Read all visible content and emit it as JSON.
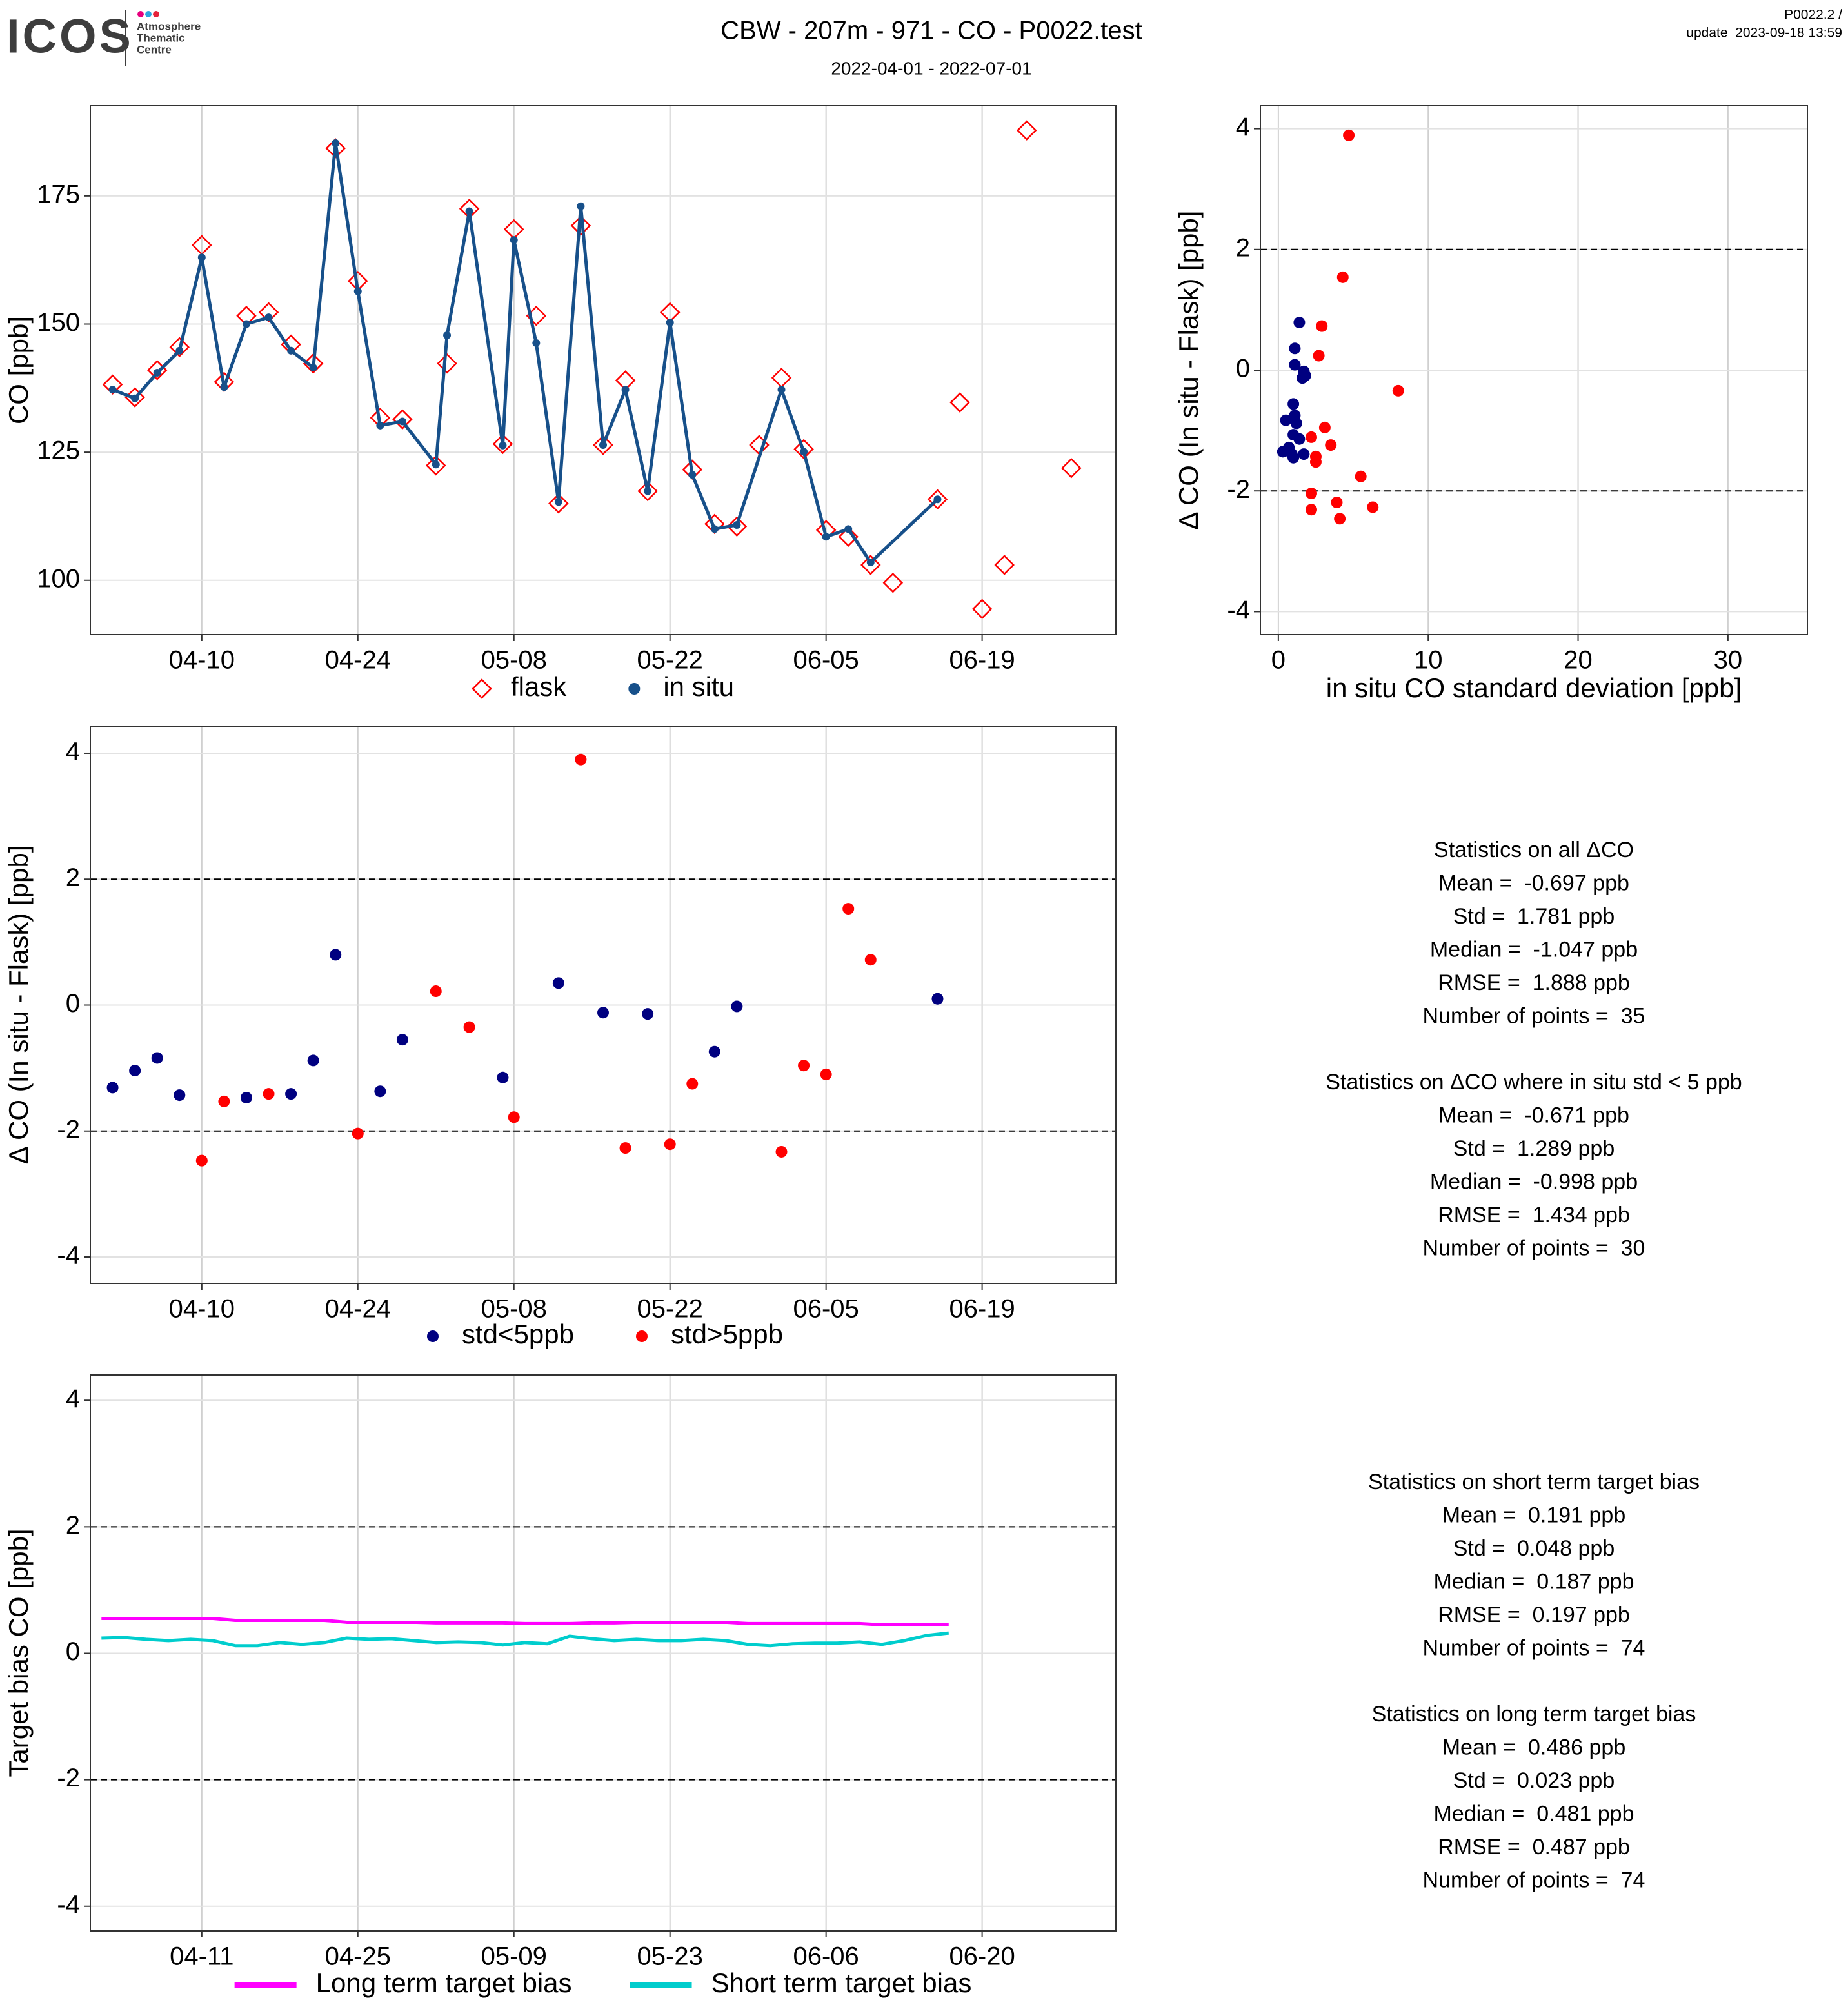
{
  "header": {
    "logo": "ICOS",
    "logo_sub": [
      "Atmosphere",
      "Thematic",
      "Centre"
    ],
    "title": "CBW - 207m - 971 - CO - P0022.test",
    "subtitle": "2022-04-01 - 2022-07-01",
    "version": "P0022.2 /",
    "update": "update  2023-09-18 13:59"
  },
  "chart_data": [
    {
      "type": "line",
      "ylabel": "CO [ppb]",
      "xlim": [
        "03-31",
        "07-01"
      ],
      "xticks": [
        "04-10",
        "04-24",
        "05-08",
        "05-22",
        "06-05",
        "06-19"
      ],
      "ylim": [
        89.4,
        192.6
      ],
      "yticks": [
        100,
        125,
        150,
        175
      ],
      "grid": true,
      "legend": "bottom",
      "series": [
        {
          "name": "flask",
          "color": "#ff0000",
          "marker": "diamond",
          "connect": false,
          "x": [
            "04-02",
            "04-04",
            "04-06",
            "04-08",
            "04-10",
            "04-12",
            "04-14",
            "04-16",
            "04-18",
            "04-20",
            "04-22",
            "04-24",
            "04-26",
            "04-28",
            "05-01",
            "05-02",
            "05-04",
            "05-07",
            "05-08",
            "05-10",
            "05-12",
            "05-14",
            "05-16",
            "05-18",
            "05-20",
            "05-22",
            "05-24",
            "05-26",
            "05-28",
            "05-30",
            "06-01",
            "06-03",
            "06-05",
            "06-07",
            "06-09",
            "06-11",
            "06-15",
            "06-17",
            "06-19",
            "06-21",
            "06-23",
            "06-27"
          ],
          "values": [
            138.2,
            135.7,
            141,
            145.5,
            165.4,
            138.7,
            151.6,
            152.3,
            146,
            142.3,
            184.3,
            158.4,
            131.7,
            131.4,
            122.4,
            142.3,
            172.5,
            126.6,
            168.5,
            151.6,
            115,
            169.2,
            126.4,
            139,
            117.4,
            152.3,
            121.6,
            111,
            110.5,
            126.4,
            139.5,
            125.6,
            109.8,
            108.5,
            103,
            99.5,
            115.8,
            134.7,
            94.4,
            103,
            187.8,
            121.9
          ]
        },
        {
          "name": "in situ",
          "color": "#17508a",
          "marker": "point",
          "connect": true,
          "x": [
            "04-02",
            "04-04",
            "04-06",
            "04-08",
            "04-10",
            "04-12",
            "04-14",
            "04-16",
            "04-18",
            "04-20",
            "04-22",
            "04-24",
            "04-26",
            "04-28",
            "05-01",
            "05-02",
            "05-04",
            "05-07",
            "05-08",
            "05-10",
            "05-12",
            "05-14",
            "05-16",
            "05-18",
            "05-20",
            "05-22",
            "05-24",
            "05-26",
            "05-28",
            "06-01",
            "06-03",
            "06-05",
            "06-07",
            "06-09",
            "06-15"
          ],
          "values": [
            137.2,
            135.5,
            140.5,
            144.8,
            163,
            137.7,
            150,
            151.3,
            144.8,
            141.5,
            185.3,
            156.4,
            130.2,
            131,
            122.6,
            147.8,
            172,
            126.3,
            166.4,
            146.3,
            115.3,
            173,
            126.4,
            137.2,
            117.4,
            150.3,
            120.6,
            110,
            110.8,
            137.2,
            125.1,
            108.5,
            110,
            103.5,
            115.8
          ]
        }
      ]
    },
    {
      "type": "scatter",
      "xlabel": "in situ CO standard deviation [ppb]",
      "ylabel": "Δ CO (In situ - Flask) [ppb]",
      "xlim": [
        -1.2,
        35.3
      ],
      "xticks": [
        0,
        10,
        20,
        30
      ],
      "ylim": [
        -4.38,
        4.38
      ],
      "yticks": [
        -4,
        -2,
        0,
        2,
        4
      ],
      "hlines": [
        -2,
        2
      ],
      "grid": true,
      "series": [
        {
          "color": "#000080",
          "marker": "point",
          "x": [
            1.4,
            1.1,
            1.1,
            1.7,
            1.6,
            1.8,
            1.0,
            1.1,
            0.5,
            1.2,
            1.0,
            1.4,
            0.3,
            0.7,
            0.9,
            1.7,
            1.0
          ],
          "values": [
            0.79,
            0.36,
            0.09,
            -0.02,
            -0.13,
            -0.09,
            -0.56,
            -0.75,
            -0.83,
            -0.88,
            -1.07,
            -1.14,
            -1.35,
            -1.28,
            -1.39,
            -1.39,
            -1.45
          ]
        },
        {
          "color": "#ff0000",
          "marker": "point",
          "x": [
            4.7,
            4.3,
            2.9,
            2.7,
            8,
            2.2,
            3.1,
            3.5,
            2.5,
            2.5,
            5.5,
            2.2,
            3.9,
            6.3,
            2.2,
            4.1
          ],
          "values": [
            3.89,
            1.54,
            0.73,
            0.24,
            -0.34,
            -1.11,
            -0.95,
            -1.24,
            -1.43,
            -1.52,
            -1.76,
            -2.04,
            -2.19,
            -2.27,
            -2.31,
            -2.46
          ]
        }
      ]
    },
    {
      "type": "scatter",
      "ylabel": "Δ CO (In situ - Flask) [ppb]",
      "xlim": [
        "03-31",
        "07-01"
      ],
      "xticks": [
        "04-10",
        "04-24",
        "05-08",
        "05-22",
        "06-05",
        "06-19"
      ],
      "ylim": [
        -4.42,
        4.43
      ],
      "yticks": [
        -4,
        -2,
        0,
        2,
        4
      ],
      "hlines": [
        -2,
        2
      ],
      "grid": true,
      "legend": "bottom",
      "series": [
        {
          "name": "std<5ppb",
          "color": "#000080",
          "marker": "point",
          "x": [
            "04-02",
            "04-04",
            "04-06",
            "04-08",
            "04-14",
            "04-18",
            "04-20",
            "04-22",
            "04-26",
            "04-28",
            "05-07",
            "05-12",
            "05-16",
            "05-20",
            "05-26",
            "05-28",
            "06-15"
          ],
          "values": [
            -1.31,
            -1.04,
            -0.84,
            -1.43,
            -1.47,
            -1.41,
            -0.88,
            0.8,
            -1.37,
            -0.55,
            -1.15,
            0.35,
            -0.12,
            -0.14,
            -0.74,
            -0.02,
            0.1
          ]
        },
        {
          "name": "std>5ppb",
          "color": "#ff0000",
          "marker": "point",
          "x": [
            "04-10",
            "04-12",
            "04-16",
            "04-24",
            "05-01",
            "05-04",
            "05-08",
            "05-14",
            "05-18",
            "05-22",
            "05-24",
            "06-01",
            "06-03",
            "06-05",
            "06-07",
            "06-09"
          ],
          "values": [
            -2.47,
            -1.53,
            -1.41,
            -2.04,
            0.22,
            -0.35,
            -1.78,
            3.9,
            -2.27,
            -2.21,
            -1.25,
            -2.33,
            -0.96,
            -1.1,
            1.53,
            0.72
          ]
        }
      ]
    },
    {
      "type": "line",
      "ylabel": "Target bias CO [ppb]",
      "xlim": [
        "04-01",
        "07-02"
      ],
      "xticks": [
        "04-11",
        "04-25",
        "05-09",
        "05-23",
        "06-06",
        "06-20"
      ],
      "ylim": [
        -4.39,
        4.4
      ],
      "yticks": [
        -4,
        -2,
        0,
        2,
        4
      ],
      "hlines": [
        -2,
        2
      ],
      "grid": true,
      "legend": "bottom",
      "x": [
        "04-02",
        "04-04",
        "04-06",
        "04-08",
        "04-10",
        "04-12",
        "04-14",
        "04-16",
        "04-18",
        "04-20",
        "04-22",
        "04-24",
        "04-26",
        "04-28",
        "04-30",
        "05-02",
        "05-04",
        "05-06",
        "05-08",
        "05-10",
        "05-12",
        "05-14",
        "05-16",
        "05-18",
        "05-20",
        "05-22",
        "05-24",
        "05-26",
        "05-28",
        "05-30",
        "06-01",
        "06-03",
        "06-05",
        "06-07",
        "06-09",
        "06-11",
        "06-13",
        "06-15",
        "06-17"
      ],
      "series": [
        {
          "name": "Long term target bias",
          "color": "#ff00ff",
          "marker": "line",
          "connect": true,
          "values": [
            0.55,
            0.55,
            0.55,
            0.55,
            0.55,
            0.55,
            0.52,
            0.52,
            0.52,
            0.52,
            0.52,
            0.49,
            0.49,
            0.49,
            0.49,
            0.48,
            0.48,
            0.48,
            0.48,
            0.47,
            0.47,
            0.47,
            0.48,
            0.48,
            0.49,
            0.49,
            0.49,
            0.49,
            0.49,
            0.47,
            0.47,
            0.47,
            0.47,
            0.47,
            0.47,
            0.45,
            0.45,
            0.45,
            0.45
          ]
        },
        {
          "name": "Short term target bias",
          "color": "#00cdcd",
          "marker": "line",
          "connect": true,
          "values": [
            0.24,
            0.25,
            0.22,
            0.2,
            0.22,
            0.2,
            0.12,
            0.12,
            0.17,
            0.14,
            0.17,
            0.24,
            0.22,
            0.23,
            0.2,
            0.17,
            0.18,
            0.17,
            0.13,
            0.17,
            0.15,
            0.27,
            0.23,
            0.2,
            0.22,
            0.2,
            0.2,
            0.22,
            0.2,
            0.14,
            0.12,
            0.15,
            0.16,
            0.16,
            0.18,
            0.14,
            0.2,
            0.28,
            0.32
          ]
        }
      ]
    }
  ],
  "stats": [
    [
      "Statistics on all ΔCO",
      "Mean =  -0.697 ppb",
      "Std =  1.781 ppb",
      "Median =  -1.047 ppb",
      "RMSE =  1.888 ppb",
      "Number of points =  35"
    ],
    [
      "Statistics on ΔCO where in situ std < 5 ppb",
      "Mean =  -0.671 ppb",
      "Std =  1.289 ppb",
      "Median =  -0.998 ppb",
      "RMSE =  1.434 ppb",
      "Number of points =  30"
    ],
    [
      "Statistics on short term target bias",
      "Mean =  0.191 ppb",
      "Std =  0.048 ppb",
      "Median =  0.187 ppb",
      "RMSE =  0.197 ppb",
      "Number of points =  74"
    ],
    [
      "Statistics on long term target bias",
      "Mean =  0.486 ppb",
      "Std =  0.023 ppb",
      "Median =  0.481 ppb",
      "RMSE =  0.487 ppb",
      "Number of points =  74"
    ]
  ]
}
